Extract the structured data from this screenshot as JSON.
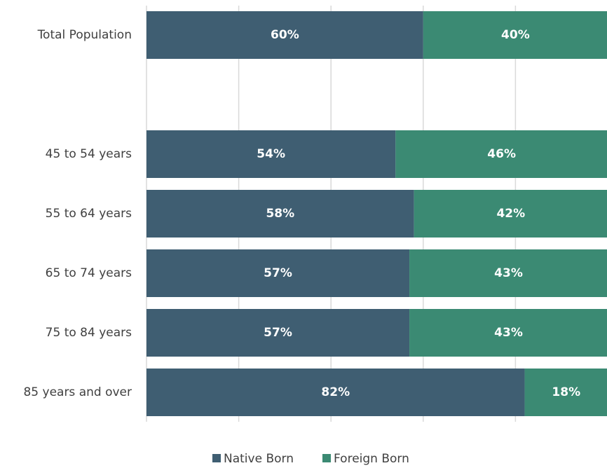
{
  "chart_data": {
    "type": "stacked-barh",
    "categories": [
      "Total Population",
      null,
      "45 to 54 years",
      "55 to 64 years",
      "65 to 74 years",
      "75 to 84 years",
      "85 years and over"
    ],
    "series": [
      {
        "name": "Native Born",
        "color": "#3f5e72",
        "values": [
          60,
          null,
          54,
          58,
          57,
          57,
          82
        ],
        "value_labels": [
          "60%",
          null,
          "54%",
          "58%",
          "57%",
          "57%",
          "82%"
        ]
      },
      {
        "name": "Foreign Born",
        "color": "#3b8a73",
        "values": [
          40,
          null,
          46,
          42,
          43,
          43,
          18
        ],
        "value_labels": [
          "40%",
          null,
          "46%",
          "42%",
          "43%",
          "43%",
          "18%"
        ]
      }
    ],
    "xlim": [
      0,
      100
    ],
    "xticks": [
      0,
      20,
      40,
      60,
      80,
      100
    ],
    "grid": true,
    "legend": "bottom"
  }
}
